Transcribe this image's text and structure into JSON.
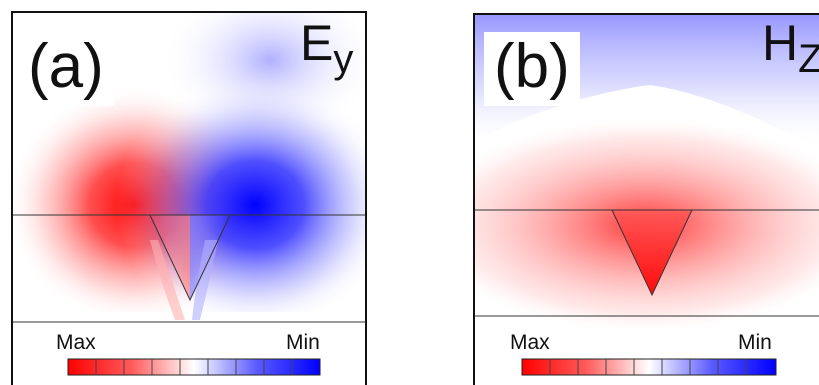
{
  "panels": [
    {
      "label": "(a)",
      "field_main": "E",
      "field_sub": "y",
      "colorbar_max": "Max",
      "colorbar_min": "Min"
    },
    {
      "label": "(b)",
      "field_main": "H",
      "field_sub": "Z",
      "colorbar_max": "Max",
      "colorbar_min": "Min"
    }
  ],
  "colors": {
    "max": "#ff0000",
    "mid": "#ffffff",
    "min": "#0000ff"
  }
}
